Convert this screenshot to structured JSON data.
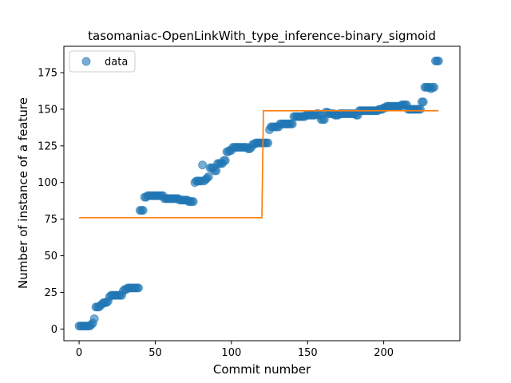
{
  "chart_data": {
    "type": "scatter",
    "title": "tasomaniac-OpenLinkWith_type_inference-binary_sigmoid",
    "xlabel": "Commit number",
    "ylabel": "Number of instance of a feature",
    "xlim": [
      -10,
      250
    ],
    "ylim": [
      -8,
      193
    ],
    "xticks": [
      0,
      50,
      100,
      150,
      200
    ],
    "yticks": [
      0,
      25,
      50,
      75,
      100,
      125,
      150,
      175
    ],
    "grid": false,
    "legend": {
      "position": "top-left",
      "entries": [
        "data"
      ]
    },
    "series": [
      {
        "name": "data",
        "kind": "scatter",
        "color": "#1f77b4",
        "points": [
          [
            0,
            2
          ],
          [
            1,
            2
          ],
          [
            2,
            2
          ],
          [
            3,
            2
          ],
          [
            4,
            2
          ],
          [
            5,
            2
          ],
          [
            6,
            2
          ],
          [
            7,
            2
          ],
          [
            8,
            3
          ],
          [
            9,
            4
          ],
          [
            10,
            7
          ],
          [
            11,
            15
          ],
          [
            12,
            15
          ],
          [
            13,
            15
          ],
          [
            14,
            16
          ],
          [
            15,
            17
          ],
          [
            16,
            18
          ],
          [
            17,
            18
          ],
          [
            18,
            18
          ],
          [
            19,
            19
          ],
          [
            20,
            22
          ],
          [
            21,
            23
          ],
          [
            22,
            23
          ],
          [
            23,
            23
          ],
          [
            24,
            23
          ],
          [
            25,
            23
          ],
          [
            26,
            23
          ],
          [
            27,
            23
          ],
          [
            28,
            23
          ],
          [
            29,
            26
          ],
          [
            30,
            27
          ],
          [
            31,
            27
          ],
          [
            32,
            28
          ],
          [
            33,
            28
          ],
          [
            34,
            28
          ],
          [
            35,
            28
          ],
          [
            36,
            28
          ],
          [
            37,
            28
          ],
          [
            38,
            28
          ],
          [
            39,
            28
          ],
          [
            40,
            81
          ],
          [
            41,
            81
          ],
          [
            42,
            81
          ],
          [
            43,
            90
          ],
          [
            44,
            90
          ],
          [
            45,
            91
          ],
          [
            46,
            91
          ],
          [
            47,
            91
          ],
          [
            48,
            91
          ],
          [
            49,
            91
          ],
          [
            50,
            91
          ],
          [
            51,
            91
          ],
          [
            52,
            91
          ],
          [
            53,
            91
          ],
          [
            54,
            91
          ],
          [
            55,
            91
          ],
          [
            56,
            89
          ],
          [
            57,
            89
          ],
          [
            58,
            89
          ],
          [
            59,
            89
          ],
          [
            60,
            89
          ],
          [
            61,
            89
          ],
          [
            62,
            89
          ],
          [
            63,
            89
          ],
          [
            64,
            89
          ],
          [
            65,
            89
          ],
          [
            66,
            88
          ],
          [
            67,
            88
          ],
          [
            68,
            88
          ],
          [
            69,
            88
          ],
          [
            70,
            88
          ],
          [
            71,
            88
          ],
          [
            72,
            87
          ],
          [
            73,
            87
          ],
          [
            74,
            87
          ],
          [
            75,
            87
          ],
          [
            76,
            100
          ],
          [
            77,
            101
          ],
          [
            78,
            101
          ],
          [
            79,
            101
          ],
          [
            80,
            101
          ],
          [
            81,
            112
          ],
          [
            82,
            101
          ],
          [
            83,
            102
          ],
          [
            84,
            103
          ],
          [
            85,
            104
          ],
          [
            86,
            110
          ],
          [
            87,
            110
          ],
          [
            88,
            110
          ],
          [
            89,
            108
          ],
          [
            90,
            108
          ],
          [
            91,
            113
          ],
          [
            92,
            113
          ],
          [
            93,
            113
          ],
          [
            94,
            113
          ],
          [
            95,
            115
          ],
          [
            96,
            115
          ],
          [
            97,
            121
          ],
          [
            98,
            121
          ],
          [
            99,
            122
          ],
          [
            100,
            122
          ],
          [
            101,
            124
          ],
          [
            102,
            124
          ],
          [
            103,
            124
          ],
          [
            104,
            124
          ],
          [
            105,
            124
          ],
          [
            106,
            124
          ],
          [
            107,
            124
          ],
          [
            108,
            124
          ],
          [
            109,
            124
          ],
          [
            110,
            124
          ],
          [
            111,
            123
          ],
          [
            112,
            123
          ],
          [
            113,
            124
          ],
          [
            114,
            126
          ],
          [
            115,
            126
          ],
          [
            116,
            127
          ],
          [
            117,
            127
          ],
          [
            118,
            127
          ],
          [
            119,
            127
          ],
          [
            120,
            127
          ],
          [
            121,
            127
          ],
          [
            122,
            127
          ],
          [
            123,
            127
          ],
          [
            124,
            127
          ],
          [
            125,
            136
          ],
          [
            126,
            138
          ],
          [
            127,
            138
          ],
          [
            128,
            138
          ],
          [
            129,
            138
          ],
          [
            130,
            138
          ],
          [
            131,
            138
          ],
          [
            132,
            140
          ],
          [
            133,
            140
          ],
          [
            134,
            140
          ],
          [
            135,
            140
          ],
          [
            136,
            140
          ],
          [
            137,
            140
          ],
          [
            138,
            140
          ],
          [
            139,
            140
          ],
          [
            140,
            140
          ],
          [
            141,
            145
          ],
          [
            142,
            145
          ],
          [
            143,
            145
          ],
          [
            144,
            145
          ],
          [
            145,
            145
          ],
          [
            146,
            145
          ],
          [
            147,
            145
          ],
          [
            148,
            145
          ],
          [
            149,
            146
          ],
          [
            150,
            146
          ],
          [
            151,
            146
          ],
          [
            152,
            146
          ],
          [
            153,
            146
          ],
          [
            154,
            146
          ],
          [
            155,
            146
          ],
          [
            156,
            147
          ],
          [
            157,
            147
          ],
          [
            158,
            146
          ],
          [
            159,
            143
          ],
          [
            160,
            143
          ],
          [
            161,
            143
          ],
          [
            162,
            148
          ],
          [
            163,
            148
          ],
          [
            164,
            147
          ],
          [
            165,
            147
          ],
          [
            166,
            147
          ],
          [
            167,
            147
          ],
          [
            168,
            146
          ],
          [
            169,
            146
          ],
          [
            170,
            146
          ],
          [
            171,
            147
          ],
          [
            172,
            147
          ],
          [
            173,
            147
          ],
          [
            174,
            147
          ],
          [
            175,
            147
          ],
          [
            176,
            147
          ],
          [
            177,
            147
          ],
          [
            178,
            147
          ],
          [
            179,
            147
          ],
          [
            180,
            147
          ],
          [
            181,
            147
          ],
          [
            182,
            146
          ],
          [
            183,
            146
          ],
          [
            184,
            149
          ],
          [
            185,
            149
          ],
          [
            186,
            149
          ],
          [
            187,
            149
          ],
          [
            188,
            149
          ],
          [
            189,
            149
          ],
          [
            190,
            149
          ],
          [
            191,
            149
          ],
          [
            192,
            149
          ],
          [
            193,
            149
          ],
          [
            194,
            149
          ],
          [
            195,
            149
          ],
          [
            196,
            149
          ],
          [
            197,
            150
          ],
          [
            198,
            150
          ],
          [
            199,
            150
          ],
          [
            200,
            151
          ],
          [
            201,
            151
          ],
          [
            202,
            152
          ],
          [
            203,
            152
          ],
          [
            204,
            152
          ],
          [
            205,
            152
          ],
          [
            206,
            152
          ],
          [
            207,
            152
          ],
          [
            208,
            152
          ],
          [
            209,
            152
          ],
          [
            210,
            152
          ],
          [
            211,
            152
          ],
          [
            212,
            153
          ],
          [
            213,
            153
          ],
          [
            214,
            153
          ],
          [
            215,
            153
          ],
          [
            216,
            150
          ],
          [
            217,
            150
          ],
          [
            218,
            150
          ],
          [
            219,
            150
          ],
          [
            220,
            150
          ],
          [
            221,
            150
          ],
          [
            222,
            150
          ],
          [
            223,
            150
          ],
          [
            224,
            150
          ],
          [
            225,
            155
          ],
          [
            226,
            155
          ],
          [
            227,
            165
          ],
          [
            228,
            165
          ],
          [
            229,
            165
          ],
          [
            230,
            165
          ],
          [
            231,
            164
          ],
          [
            232,
            165
          ],
          [
            233,
            165
          ],
          [
            234,
            183
          ],
          [
            235,
            183
          ],
          [
            236,
            183
          ]
        ]
      },
      {
        "name": "",
        "kind": "line",
        "color": "#ff7f0e",
        "points": [
          [
            0,
            76
          ],
          [
            120,
            76
          ],
          [
            121,
            149
          ],
          [
            236,
            149
          ]
        ]
      }
    ]
  }
}
